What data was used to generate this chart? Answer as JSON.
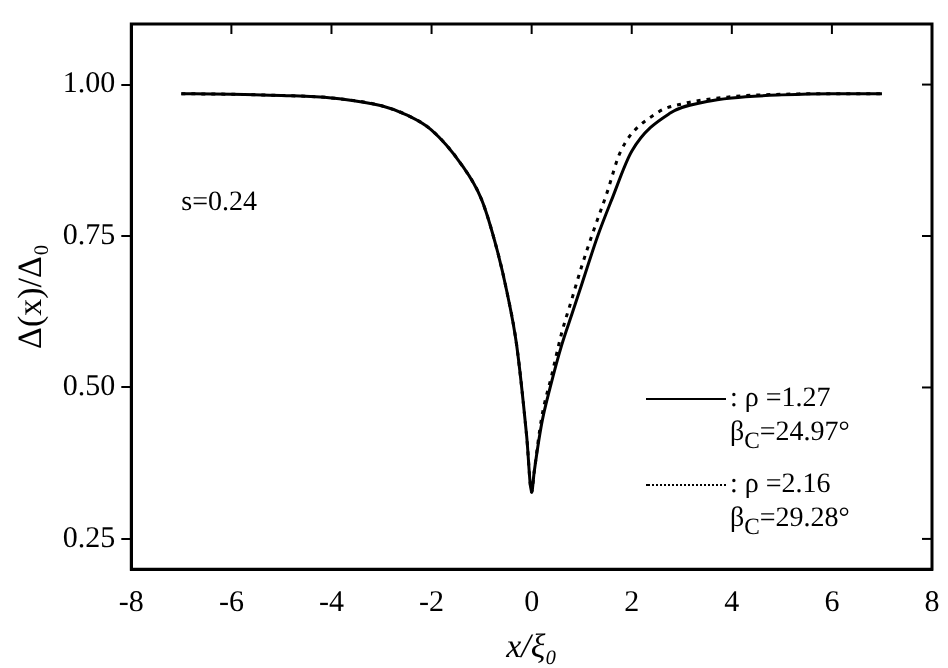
{
  "chart_data": {
    "type": "line",
    "xlabel": "x/ξ₀",
    "ylabel": "Δ(x)/Δ₀",
    "xlim": [
      -8,
      8
    ],
    "xticks": [
      -8,
      -6,
      -4,
      -2,
      0,
      2,
      4,
      6,
      8
    ],
    "ylim": [
      0.2,
      1.1
    ],
    "yticks": [
      {
        "value": 0.25,
        "label": "0.25"
      },
      {
        "value": 0.5,
        "label": "0.50"
      },
      {
        "value": 0.75,
        "label": "0.75"
      },
      {
        "value": 1,
        "label": "1.00"
      }
    ],
    "grid": false,
    "legend": "bottom right",
    "marker": "none",
    "annotations": [
      "s=0.24"
    ],
    "series": [
      {
        "name": ": ρ =1.27 β$_{C}$=24.97°",
        "color": "#000000",
        "line_style": "solid",
        "x": [
          -7,
          -6,
          -5,
          -4,
          -3,
          -2.5,
          -2,
          -1.42,
          -1,
          -0.7,
          -0.5,
          -0.3,
          -0.1,
          0,
          0.05,
          0.2,
          0.37,
          0.6,
          0.8,
          1,
          1.32,
          1.6,
          2,
          2.77,
          3.5,
          4,
          5,
          6,
          7
        ],
        "values": [
          0.985,
          0.984,
          0.982,
          0.978,
          0.965,
          0.95,
          0.925,
          0.87,
          0.81,
          0.73,
          0.66,
          0.57,
          0.42,
          0.327,
          0.36,
          0.44,
          0.5,
          0.57,
          0.62,
          0.67,
          0.75,
          0.81,
          0.89,
          0.953,
          0.972,
          0.978,
          0.983,
          0.985,
          0.985
        ]
      },
      {
        "name": ": ρ =2.16 β$_{C}$=29.28°",
        "color": "#000000",
        "line_style": "dotted",
        "x": [
          -7,
          -6,
          -5,
          -4,
          -3,
          -2.5,
          -2,
          -1.42,
          -1,
          -0.7,
          -0.5,
          -0.3,
          -0.1,
          0,
          0.05,
          0.2,
          0.4,
          0.6,
          0.8,
          1,
          1.2,
          1.5,
          1.78,
          2.5,
          3,
          4,
          5,
          6,
          7
        ],
        "values": [
          0.985,
          0.984,
          0.982,
          0.978,
          0.965,
          0.95,
          0.925,
          0.87,
          0.81,
          0.73,
          0.66,
          0.57,
          0.42,
          0.327,
          0.36,
          0.45,
          0.52,
          0.59,
          0.645,
          0.7,
          0.75,
          0.82,
          0.89,
          0.953,
          0.968,
          0.98,
          0.984,
          0.985,
          0.985
        ]
      }
    ]
  }
}
